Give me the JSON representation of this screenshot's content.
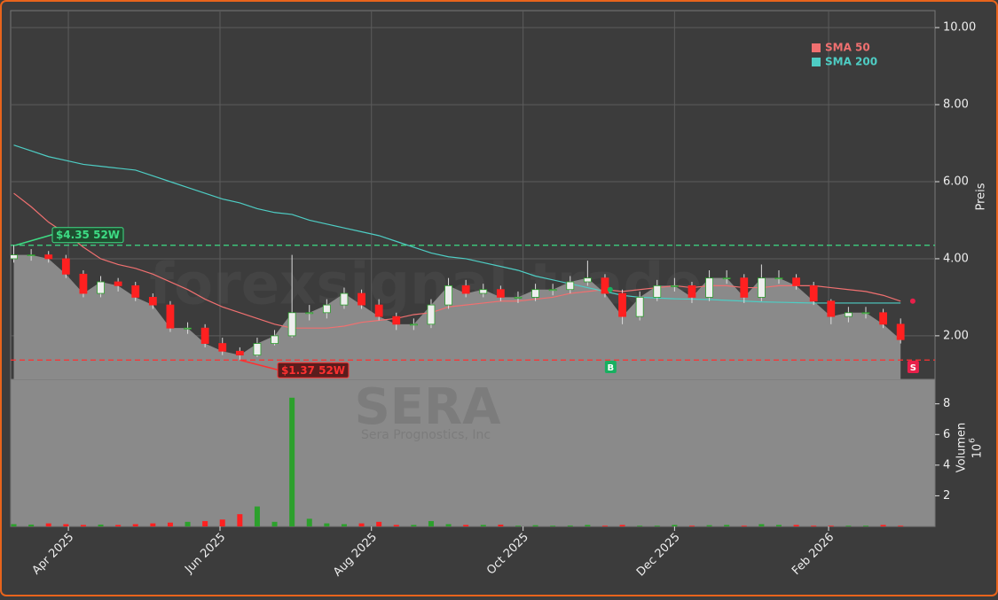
{
  "chart_data": {
    "type": "candlestick",
    "categories": [
      null,
      null,
      null,
      null,
      null,
      null,
      null,
      null,
      null,
      null,
      null,
      null,
      null,
      null,
      null,
      null,
      null,
      null,
      null,
      null,
      null,
      null,
      null,
      null,
      null,
      null,
      null,
      null,
      null,
      null,
      null,
      null,
      null,
      null,
      null,
      null,
      null,
      null,
      null,
      null,
      null,
      null,
      null,
      null,
      null,
      null,
      null,
      null,
      null,
      null,
      null,
      null
    ],
    "xlim": [
      -0.18,
      52.98
    ],
    "xticks": [
      {
        "value": 3.14,
        "label": "Apr 2025"
      },
      {
        "value": 11.86,
        "label": "Jun 2025"
      },
      {
        "value": 20.57,
        "label": "Aug 2025"
      },
      {
        "value": 29.29,
        "label": "Oct 2025"
      },
      {
        "value": 38.0,
        "label": "Dec 2025"
      },
      {
        "value": 46.86,
        "label": "Feb 2026"
      }
    ],
    "ylabel": "Preis",
    "ylim": [
      0.87,
      10.44
    ],
    "yticks": [
      {
        "value": 2,
        "label": "2.00"
      },
      {
        "value": 4,
        "label": "4.00"
      },
      {
        "value": 6,
        "label": "6.00"
      },
      {
        "value": 8,
        "label": "8.00"
      },
      {
        "value": 10,
        "label": "10.00"
      }
    ],
    "grid": true,
    "up_color": "#2ca02c",
    "down_color": "#ff2020",
    "area_color": "#8a8a8a",
    "open": [
      4.0,
      4.1,
      4.1,
      4.0,
      3.6,
      3.1,
      3.4,
      3.3,
      3.0,
      2.8,
      2.2,
      2.2,
      1.8,
      1.6,
      1.5,
      1.8,
      2.0,
      2.6,
      2.6,
      2.8,
      3.1,
      2.8,
      2.5,
      2.3,
      2.3,
      2.8,
      3.3,
      3.1,
      3.2,
      3.0,
      3.0,
      3.2,
      3.2,
      3.4,
      3.5,
      3.1,
      2.5,
      3.0,
      3.3,
      3.3,
      3.0,
      3.5,
      3.5,
      3.0,
      3.5,
      3.5,
      3.3,
      2.9,
      2.5,
      2.6,
      2.6,
      2.3
    ],
    "high": [
      4.35,
      4.25,
      4.2,
      4.1,
      3.7,
      3.55,
      3.5,
      3.4,
      3.1,
      2.9,
      2.35,
      2.3,
      1.95,
      1.7,
      1.95,
      2.15,
      4.1,
      2.8,
      2.95,
      3.25,
      3.2,
      2.95,
      2.6,
      2.45,
      2.95,
      3.5,
      3.45,
      3.35,
      3.3,
      3.15,
      3.35,
      3.35,
      3.55,
      3.95,
      3.6,
      3.2,
      3.15,
      3.45,
      3.5,
      3.4,
      3.7,
      3.7,
      3.6,
      3.85,
      3.7,
      3.6,
      3.4,
      2.95,
      2.75,
      2.75,
      2.7,
      2.45
    ],
    "low": [
      3.9,
      3.95,
      3.9,
      3.5,
      3.0,
      3.0,
      3.15,
      2.9,
      2.7,
      2.1,
      2.05,
      1.7,
      1.5,
      1.37,
      1.45,
      1.75,
      1.95,
      2.4,
      2.45,
      2.7,
      2.7,
      2.4,
      2.15,
      2.15,
      2.2,
      2.7,
      3.0,
      3.0,
      2.9,
      2.85,
      2.9,
      3.05,
      3.1,
      3.3,
      3.0,
      2.3,
      2.4,
      2.9,
      3.15,
      2.85,
      2.9,
      3.35,
      2.85,
      2.9,
      3.35,
      3.2,
      2.8,
      2.3,
      2.35,
      2.45,
      2.2,
      1.8
    ],
    "close": [
      4.1,
      4.1,
      4.0,
      3.6,
      3.1,
      3.4,
      3.3,
      3.0,
      2.8,
      2.2,
      2.2,
      1.8,
      1.6,
      1.5,
      1.8,
      2.0,
      2.6,
      2.6,
      2.8,
      3.1,
      2.8,
      2.5,
      2.3,
      2.3,
      2.8,
      3.3,
      3.1,
      3.2,
      3.0,
      3.0,
      3.2,
      3.2,
      3.4,
      3.5,
      3.1,
      2.5,
      3.0,
      3.3,
      3.3,
      3.0,
      3.5,
      3.5,
      3.0,
      3.5,
      3.5,
      3.3,
      2.9,
      2.5,
      2.6,
      2.6,
      2.3,
      1.9
    ],
    "series": [
      {
        "name": "SMA 50",
        "color": "#f07070",
        "values": [
          5.7,
          5.35,
          4.95,
          4.65,
          4.3,
          4.0,
          3.85,
          3.75,
          3.6,
          3.4,
          3.2,
          2.95,
          2.75,
          2.6,
          2.45,
          2.3,
          2.2,
          2.2,
          2.2,
          2.25,
          2.35,
          2.4,
          2.45,
          2.55,
          2.6,
          2.75,
          2.8,
          2.85,
          2.9,
          2.9,
          2.95,
          3.0,
          3.1,
          3.15,
          3.2,
          3.15,
          3.2,
          3.25,
          3.3,
          3.25,
          3.3,
          3.3,
          3.25,
          3.25,
          3.3,
          3.3,
          3.3,
          3.25,
          3.2,
          3.15,
          3.05,
          2.9
        ]
      },
      {
        "name": "SMA 200",
        "color": "#4ecdc4",
        "values": [
          6.95,
          6.8,
          6.65,
          6.55,
          6.45,
          6.4,
          6.35,
          6.3,
          6.15,
          6.0,
          5.85,
          5.7,
          5.55,
          5.45,
          5.3,
          5.2,
          5.15,
          5.0,
          4.9,
          4.8,
          4.7,
          4.6,
          4.45,
          4.3,
          4.15,
          4.05,
          4.0,
          3.9,
          3.8,
          3.7,
          3.55,
          3.45,
          3.35,
          3.25,
          3.15,
          3.05,
          3.0,
          2.98,
          2.96,
          2.95,
          2.94,
          2.92,
          2.9,
          2.88,
          2.87,
          2.86,
          2.85,
          2.85,
          2.85,
          2.85,
          2.85,
          2.85
        ]
      }
    ],
    "levels": [
      {
        "value": 4.35,
        "label": "$4.35 52W",
        "x": 0,
        "color": "#3ddc84"
      },
      {
        "value": 1.37,
        "label": "$1.37 52W",
        "x": 12.9,
        "color": "#ff3030"
      }
    ],
    "signals": [
      {
        "x": 34.3,
        "label": "B",
        "color": "#18b060"
      },
      {
        "x": 51.7,
        "label": "S",
        "color": "#e8204a"
      }
    ],
    "volume": {
      "ylabel": "Volumen",
      "scale_base": "10",
      "scale_exponent": "6",
      "ylim": [
        0,
        9.6
      ],
      "yticks": [
        2,
        4,
        6,
        8
      ],
      "values": [
        0.15,
        0.12,
        0.2,
        0.15,
        0.1,
        0.12,
        0.1,
        0.15,
        0.2,
        0.25,
        0.3,
        0.35,
        0.45,
        0.8,
        1.3,
        0.3,
        8.4,
        0.5,
        0.2,
        0.15,
        0.2,
        0.3,
        0.1,
        0.1,
        0.35,
        0.15,
        0.1,
        0.1,
        0.12,
        0.05,
        0.08,
        0.05,
        0.06,
        0.1,
        0.05,
        0.1,
        0.05,
        0.05,
        0.1,
        0.05,
        0.08,
        0.1,
        0.05,
        0.15,
        0.1,
        0.1,
        0.05,
        0.05,
        0.05,
        0.05,
        0.1,
        0.05
      ]
    },
    "watermark": {
      "site": "forexsignal.trade",
      "ticker": "SERA",
      "company": "Sera Prognostics, Inc"
    }
  }
}
